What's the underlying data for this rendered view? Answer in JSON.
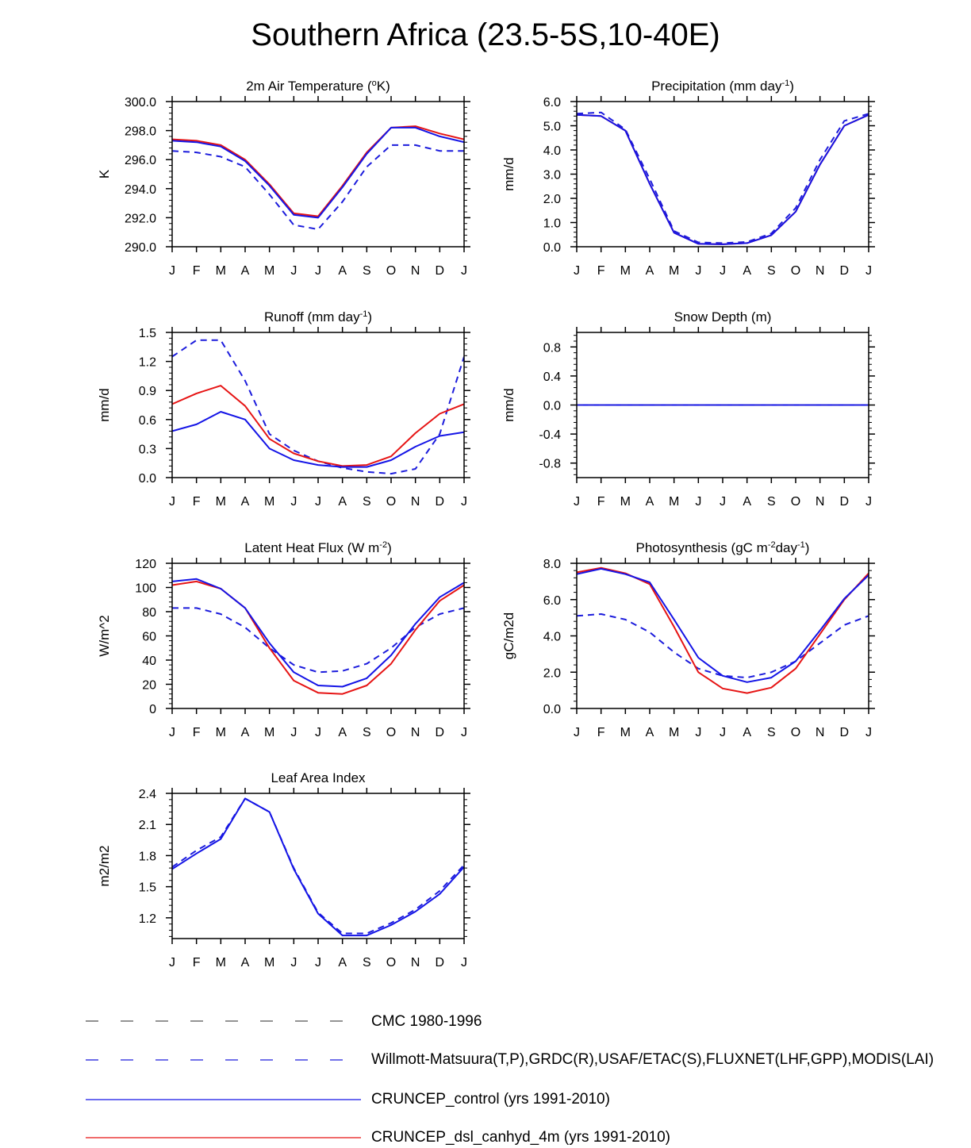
{
  "title": "Southern Africa (23.5-5S,10-40E)",
  "months": [
    "J",
    "F",
    "M",
    "A",
    "M",
    "J",
    "J",
    "A",
    "S",
    "O",
    "N",
    "D",
    "J"
  ],
  "colors": {
    "obs": "#1c1cdc",
    "control": "#1414e6",
    "canhyd": "#e61414",
    "cmc": "#555555",
    "axis": "#000000"
  },
  "legend": [
    {
      "label": "CMC 1980-1996",
      "color": "#555555",
      "style": "dashed"
    },
    {
      "label": "Willmott-Matsuura(T,P),GRDC(R),USAF/ETAC(S),FLUXNET(LHF,GPP),MODIS(LAI)",
      "color": "#1c1cdc",
      "style": "dashed"
    },
    {
      "label": "CRUNCEP_control (yrs 1991-2010)",
      "color": "#1414e6",
      "style": "solid"
    },
    {
      "label": "CRUNCEP_dsl_canhyd_4m (yrs 1991-2010)",
      "color": "#e61414",
      "style": "solid"
    }
  ],
  "chart_data": [
    {
      "type": "line",
      "title": "2m Air Temperature (",
      "title_sup": "o",
      "title_end": "K)",
      "ylabel": "K",
      "ylim": [
        290,
        300
      ],
      "yticks": [
        290,
        292,
        294,
        296,
        298,
        300
      ],
      "ytick_labels": [
        "290.0",
        "292.0",
        "294.0",
        "296.0",
        "298.0",
        "300.0"
      ],
      "x": [
        "J",
        "F",
        "M",
        "A",
        "M",
        "J",
        "J",
        "A",
        "S",
        "O",
        "N",
        "D",
        "J"
      ],
      "series": [
        {
          "name": "Willmott-Matsuura",
          "style": "dashed",
          "color": "obs",
          "values": [
            296.6,
            296.5,
            296.2,
            295.5,
            293.6,
            291.5,
            291.2,
            293.1,
            295.5,
            297.0,
            297.0,
            296.6,
            296.6
          ]
        },
        {
          "name": "CRUNCEP_dsl_canhyd_4m",
          "style": "solid",
          "color": "canhyd",
          "values": [
            297.4,
            297.3,
            297.0,
            296.0,
            294.3,
            292.3,
            292.1,
            294.2,
            296.5,
            298.2,
            298.3,
            297.8,
            297.4
          ]
        },
        {
          "name": "CRUNCEP_control",
          "style": "solid",
          "color": "control",
          "values": [
            297.3,
            297.2,
            296.9,
            295.9,
            294.2,
            292.2,
            292.0,
            294.1,
            296.4,
            298.2,
            298.2,
            297.6,
            297.2
          ]
        }
      ]
    },
    {
      "type": "line",
      "title": "Precipitation (mm day",
      "title_sup": "-1",
      "title_end": ")",
      "ylabel": "mm/d",
      "ylim": [
        0,
        6
      ],
      "yticks": [
        0,
        1,
        2,
        3,
        4,
        5,
        6
      ],
      "ytick_labels": [
        "0.0",
        "1.0",
        "2.0",
        "3.0",
        "4.0",
        "5.0",
        "6.0"
      ],
      "x": [
        "J",
        "F",
        "M",
        "A",
        "M",
        "J",
        "J",
        "A",
        "S",
        "O",
        "N",
        "D",
        "J"
      ],
      "series": [
        {
          "name": "Willmott-Matsuura",
          "style": "dashed",
          "color": "obs",
          "values": [
            5.5,
            5.55,
            4.85,
            2.8,
            0.65,
            0.18,
            0.15,
            0.2,
            0.55,
            1.6,
            3.6,
            5.2,
            5.5
          ]
        },
        {
          "name": "CRUNCEP_dsl_canhyd_4m",
          "style": "solid",
          "color": "canhyd",
          "values": [
            5.45,
            5.4,
            4.8,
            2.6,
            0.58,
            0.12,
            0.1,
            0.15,
            0.48,
            1.45,
            3.4,
            5.0,
            5.45
          ]
        },
        {
          "name": "CRUNCEP_control",
          "style": "solid",
          "color": "control",
          "values": [
            5.45,
            5.4,
            4.8,
            2.6,
            0.58,
            0.12,
            0.1,
            0.15,
            0.48,
            1.45,
            3.4,
            5.0,
            5.45
          ]
        }
      ]
    },
    {
      "type": "line",
      "title": "Runoff (mm day",
      "title_sup": "-1",
      "title_end": ")",
      "ylabel": "mm/d",
      "ylim": [
        0,
        1.5
      ],
      "yticks": [
        0,
        0.3,
        0.6,
        0.9,
        1.2,
        1.5
      ],
      "ytick_labels": [
        "0.0",
        "0.3",
        "0.6",
        "0.9",
        "1.2",
        "1.5"
      ],
      "x": [
        "J",
        "F",
        "M",
        "A",
        "M",
        "J",
        "J",
        "A",
        "S",
        "O",
        "N",
        "D",
        "J"
      ],
      "series": [
        {
          "name": "GRDC",
          "style": "dashed",
          "color": "obs",
          "values": [
            1.25,
            1.42,
            1.42,
            1.0,
            0.45,
            0.28,
            0.17,
            0.1,
            0.06,
            0.04,
            0.09,
            0.45,
            1.25
          ]
        },
        {
          "name": "CRUNCEP_dsl_canhyd_4m",
          "style": "solid",
          "color": "canhyd",
          "values": [
            0.76,
            0.87,
            0.95,
            0.74,
            0.4,
            0.25,
            0.17,
            0.12,
            0.13,
            0.22,
            0.46,
            0.66,
            0.76
          ]
        },
        {
          "name": "CRUNCEP_control",
          "style": "solid",
          "color": "control",
          "values": [
            0.48,
            0.55,
            0.68,
            0.6,
            0.3,
            0.18,
            0.13,
            0.11,
            0.11,
            0.18,
            0.32,
            0.43,
            0.47
          ]
        }
      ]
    },
    {
      "type": "line",
      "title": "Snow Depth (m)",
      "title_sup": "",
      "title_end": "",
      "ylabel": "mm/d",
      "ylim": [
        -1.0,
        1.0
      ],
      "yticks": [
        -0.8,
        -0.4,
        0.0,
        0.4,
        0.8
      ],
      "ytick_labels": [
        "-0.8",
        "-0.4",
        "0.0",
        "0.4",
        "0.8"
      ],
      "x": [
        "J",
        "F",
        "M",
        "A",
        "M",
        "J",
        "J",
        "A",
        "S",
        "O",
        "N",
        "D",
        "J"
      ],
      "series": [
        {
          "name": "CRUNCEP_dsl_canhyd_4m",
          "style": "solid",
          "color": "canhyd",
          "values": [
            0,
            0,
            0,
            0,
            0,
            0,
            0,
            0,
            0,
            0,
            0,
            0,
            0
          ]
        },
        {
          "name": "CRUNCEP_control",
          "style": "solid",
          "color": "control",
          "values": [
            0,
            0,
            0,
            0,
            0,
            0,
            0,
            0,
            0,
            0,
            0,
            0,
            0
          ]
        },
        {
          "name": "USAF/ETAC",
          "style": "dashed",
          "color": "obs",
          "values": [
            0,
            0,
            0,
            0,
            0,
            0,
            0,
            0,
            0,
            0,
            0,
            0,
            0
          ]
        }
      ]
    },
    {
      "type": "line",
      "title": "Latent Heat Flux (W m",
      "title_sup": "-2",
      "title_end": ")",
      "ylabel": "W/m^2",
      "ylim": [
        0,
        120
      ],
      "yticks": [
        0,
        20,
        40,
        60,
        80,
        100,
        120
      ],
      "ytick_labels": [
        "0",
        "20",
        "40",
        "60",
        "80",
        "100",
        "120"
      ],
      "x": [
        "J",
        "F",
        "M",
        "A",
        "M",
        "J",
        "J",
        "A",
        "S",
        "O",
        "N",
        "D",
        "J"
      ],
      "series": [
        {
          "name": "FLUXNET",
          "style": "dashed",
          "color": "obs",
          "values": [
            83,
            83,
            78,
            67,
            50,
            36,
            30,
            31,
            37,
            50,
            67,
            78,
            83
          ]
        },
        {
          "name": "CRUNCEP_dsl_canhyd_4m",
          "style": "solid",
          "color": "canhyd",
          "values": [
            102,
            105,
            99,
            83,
            50,
            23,
            13,
            12,
            19,
            37,
            65,
            89,
            102
          ]
        },
        {
          "name": "CRUNCEP_control",
          "style": "solid",
          "color": "control",
          "values": [
            105,
            107,
            99,
            83,
            54,
            30,
            19,
            18,
            25,
            44,
            70,
            92,
            104
          ]
        }
      ]
    },
    {
      "type": "line",
      "title": "Photosynthesis (gC m",
      "title_sup": "-2",
      "title_mid": "day",
      "title_sup2": "-1",
      "title_end": ")",
      "ylabel": "gC/m2d",
      "ylim": [
        0,
        8
      ],
      "yticks": [
        0,
        2,
        4,
        6,
        8
      ],
      "ytick_labels": [
        "0.0",
        "2.0",
        "4.0",
        "6.0",
        "8.0"
      ],
      "x": [
        "J",
        "F",
        "M",
        "A",
        "M",
        "J",
        "J",
        "A",
        "S",
        "O",
        "N",
        "D",
        "J"
      ],
      "series": [
        {
          "name": "FLUXNET",
          "style": "dashed",
          "color": "obs",
          "values": [
            5.1,
            5.2,
            4.9,
            4.2,
            3.1,
            2.2,
            1.8,
            1.7,
            2.0,
            2.6,
            3.6,
            4.6,
            5.1
          ]
        },
        {
          "name": "CRUNCEP_dsl_canhyd_4m",
          "style": "solid",
          "color": "canhyd",
          "values": [
            7.5,
            7.75,
            7.45,
            6.85,
            4.5,
            2.0,
            1.1,
            0.85,
            1.15,
            2.2,
            4.1,
            6.0,
            7.45
          ]
        },
        {
          "name": "CRUNCEP_control",
          "style": "solid",
          "color": "control",
          "values": [
            7.4,
            7.7,
            7.4,
            6.95,
            4.9,
            2.8,
            1.8,
            1.45,
            1.7,
            2.6,
            4.3,
            6.05,
            7.35
          ]
        }
      ]
    },
    {
      "type": "line",
      "title": "Leaf Area Index",
      "title_sup": "",
      "title_end": "",
      "ylabel": "m2/m2",
      "ylim": [
        1.0,
        2.4
      ],
      "yticks": [
        1.2,
        1.5,
        1.8,
        2.1,
        2.4
      ],
      "ytick_labels": [
        "1.2",
        "1.5",
        "1.8",
        "2.1",
        "2.4"
      ],
      "x": [
        "J",
        "F",
        "M",
        "A",
        "M",
        "J",
        "J",
        "A",
        "S",
        "O",
        "N",
        "D",
        "J"
      ],
      "series": [
        {
          "name": "MODIS",
          "style": "dashed",
          "color": "obs",
          "values": [
            1.69,
            1.85,
            1.98,
            2.35,
            2.22,
            1.68,
            1.25,
            1.05,
            1.05,
            1.15,
            1.28,
            1.46,
            1.71
          ]
        },
        {
          "name": "CRUNCEP_control",
          "style": "solid",
          "color": "control",
          "values": [
            1.67,
            1.82,
            1.96,
            2.35,
            2.22,
            1.67,
            1.24,
            1.03,
            1.03,
            1.13,
            1.26,
            1.43,
            1.69
          ]
        }
      ]
    }
  ]
}
